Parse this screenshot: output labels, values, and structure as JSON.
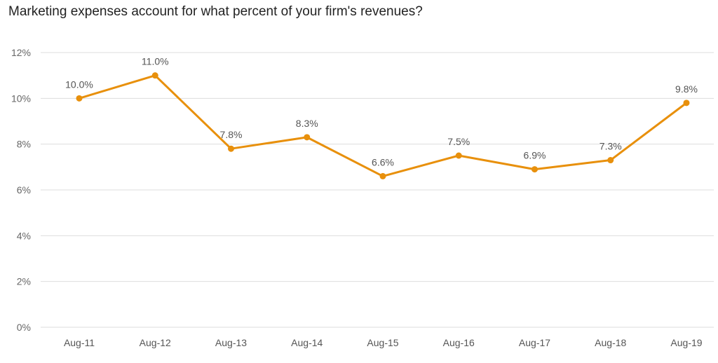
{
  "chart_data": {
    "type": "line",
    "title": "Marketing expenses account for what percent of your firm's revenues?",
    "categories": [
      "Aug-11",
      "Aug-12",
      "Aug-13",
      "Aug-14",
      "Aug-15",
      "Aug-16",
      "Aug-17",
      "Aug-18",
      "Aug-19"
    ],
    "series": [
      {
        "values": [
          10.0,
          11.0,
          7.8,
          8.3,
          6.6,
          7.5,
          6.9,
          7.3,
          9.8
        ],
        "labels": [
          "10.0%",
          "11.0%",
          "7.8%",
          "8.3%",
          "6.6%",
          "7.5%",
          "6.9%",
          "7.3%",
          "9.8%"
        ],
        "color": "#E8900C"
      }
    ],
    "yticks": [
      0,
      2,
      4,
      6,
      8,
      10,
      12
    ],
    "ytick_labels": [
      "0%",
      "2%",
      "4%",
      "6%",
      "8%",
      "10%",
      "12%"
    ],
    "ylim": [
      0,
      12
    ],
    "grid": true,
    "gridline_color": "#dddddd",
    "legend": "none"
  }
}
